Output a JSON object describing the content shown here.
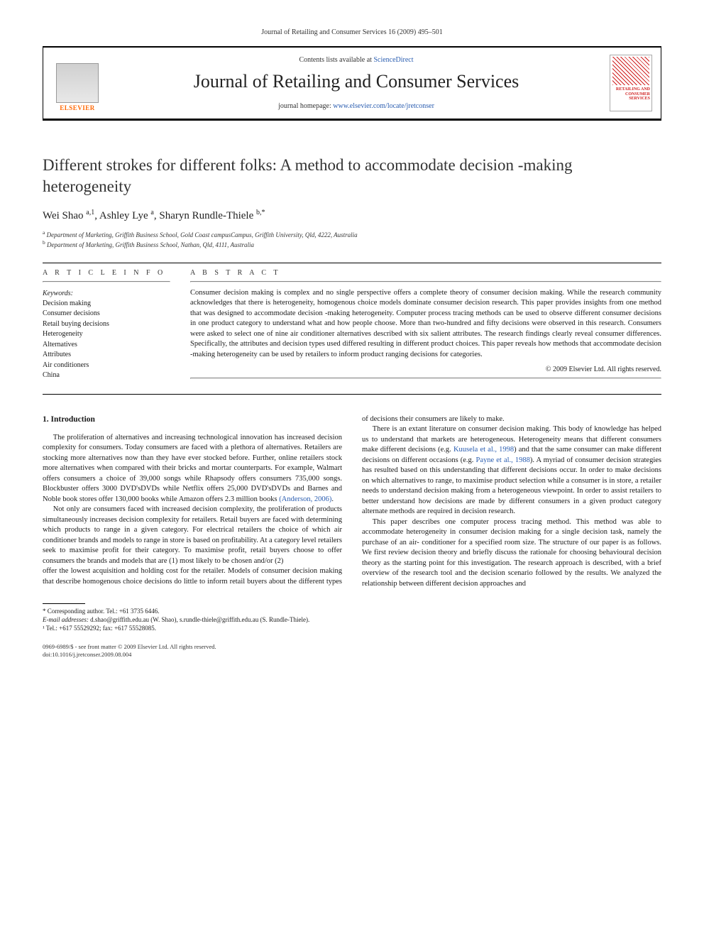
{
  "header": {
    "journal_ref": "Journal of Retailing and Consumer Services 16 (2009) 495–501",
    "contents_prefix": "Contents lists available at ",
    "contents_link": "ScienceDirect",
    "journal_title": "Journal of Retailing and Consumer Services",
    "homepage_prefix": "journal homepage: ",
    "homepage_url": "www.elsevier.com/locate/jretconser",
    "elsevier_label": "ELSEVIER",
    "cover_label": "RETAILING\nAND\nCONSUMER\nSERVICES"
  },
  "article": {
    "title": "Different strokes for different folks: A method to accommodate decision -making heterogeneity",
    "authors_html": "Wei Shao <sup>a,1</sup>, Ashley Lye <sup>a</sup>, Sharyn Rundle-Thiele <sup>b,*</sup>",
    "affiliations": [
      {
        "sup": "a",
        "text": "Department of Marketing, Griffith Business School, Gold Coast campusCampus, Griffith University, Qld, 4222, Australia"
      },
      {
        "sup": "b",
        "text": "Department of Marketing, Griffith Business School, Nathan, Qld, 4111, Australia"
      }
    ]
  },
  "info": {
    "head": "A R T I C L E   I N F O",
    "keywords_label": "Keywords:",
    "keywords": [
      "Decision making",
      "Consumer decisions",
      "Retail buying decisions",
      "Heterogeneity",
      "Alternatives",
      "Attributes",
      "Air conditioners",
      "China"
    ]
  },
  "abstract": {
    "head": "A B S T R A C T",
    "text": "Consumer decision making is complex and no single perspective offers a complete theory of consumer decision making. While the research community acknowledges that there is heterogeneity, homogenous choice models dominate consumer decision research. This paper provides insights from one method that was designed to accommodate decision -making heterogeneity. Computer process tracing methods can be used to observe different consumer decisions in one product category to understand what and how people choose. More than two-hundred and fifty decisions were observed in this research. Consumers were asked to select one of nine air conditioner alternatives described with six salient attributes. The research findings clearly reveal consumer differences. Specifically, the attributes and decision types used differed resulting in different product choices. This paper reveals how methods that accommodate decision -making heterogeneity can be used by retailers to inform product ranging decisions for categories.",
    "copyright": "© 2009 Elsevier Ltd. All rights reserved."
  },
  "body": {
    "section_number": "1.",
    "section_title": "Introduction",
    "p1": "The proliferation of alternatives and increasing technological innovation has increased decision complexity for consumers. Today consumers are faced with a plethora of alternatives. Retailers are stocking more alternatives now than they have ever stocked before. Further, online retailers stock more alternatives when compared with their bricks and mortar counterparts. For example, Walmart offers consumers a choice of 39,000 songs while Rhapsody offers consumers 735,000 songs. Blockbuster offers 3000 DVD'sDVDs while Netflix offers 25,000 DVD'sDVDs and Barnes and Noble book stores offer 130,000 books while Amazon offers 2.3 million books ",
    "p1_cite": "(Anderson, 2006)",
    "p1_tail": ".",
    "p2": "Not only are consumers faced with increased decision complexity, the proliferation of products simultaneously increases decision complexity for retailers. Retail buyers are faced with determining which products to range in a given category. For electrical retailers the choice of which air conditioner brands and models to range in store is based on profitability. At a category level retailers seek to maximise profit for their category. To maximise profit, retail buyers choose to offer consumers the brands and models that are (1) most likely to be chosen and/or (2)",
    "p3": "offer the lowest acquisition and holding cost for the retailer. Models of consumer decision making that describe homogenous choice decisions do little to inform retail buyers about the different types of decisions their consumers are likely to make.",
    "p4a": "There is an extant literature on consumer decision making. This body of knowledge has helped us to understand that markets are heterogeneous. Heterogeneity means that different consumers make different decisions (e.g. ",
    "p4_cite1": "Kuusela et al., 1998",
    "p4b": ") and that the same consumer can make different decisions on different occasions (e.g. ",
    "p4_cite2": "Payne et al., 1988",
    "p4c": "). A myriad of consumer decision strategies has resulted based on this understanding that different decisions occur. In order to make decisions on which alternatives to range, to maximise product selection while a consumer is in store, a retailer needs to understand decision making from a heterogeneous viewpoint. In order to assist retailers to better understand how decisions are made by different consumers in a given product category alternate methods are required in decision research.",
    "p5": "This paper describes one computer process tracing method. This method was able to accommodate heterogeneity in consumer decision making for a single decision task, namely the purchase of an air- conditioner for a specified room size. The structure of our paper is as follows. We first review decision theory and briefly discuss the rationale for choosing behavioural decision theory as the starting point for this investigation. The research approach is described, with a brief overview of the research tool and the decision scenario followed by the results. We analyzed the relationship between different decision approaches and"
  },
  "footnotes": {
    "corr": "* Corresponding author. Tel.: +61 3735 6446.",
    "email_label": "E-mail addresses:",
    "email_text": " d.shao@griffith.edu.au (W. Shao), s.rundle-thiele@griffith.edu.au (S. Rundle-Thiele).",
    "tel": "¹ Tel.: +617 55529292; fax: +617 55528085."
  },
  "footer": {
    "issn": "0969-6989/$ - see front matter © 2009 Elsevier Ltd. All rights reserved.",
    "doi": "doi:10.1016/j.jretconser.2009.08.004"
  },
  "colors": {
    "link": "#2a5db0",
    "elsevier_orange": "#ff6600",
    "text": "#1a1a1a"
  }
}
